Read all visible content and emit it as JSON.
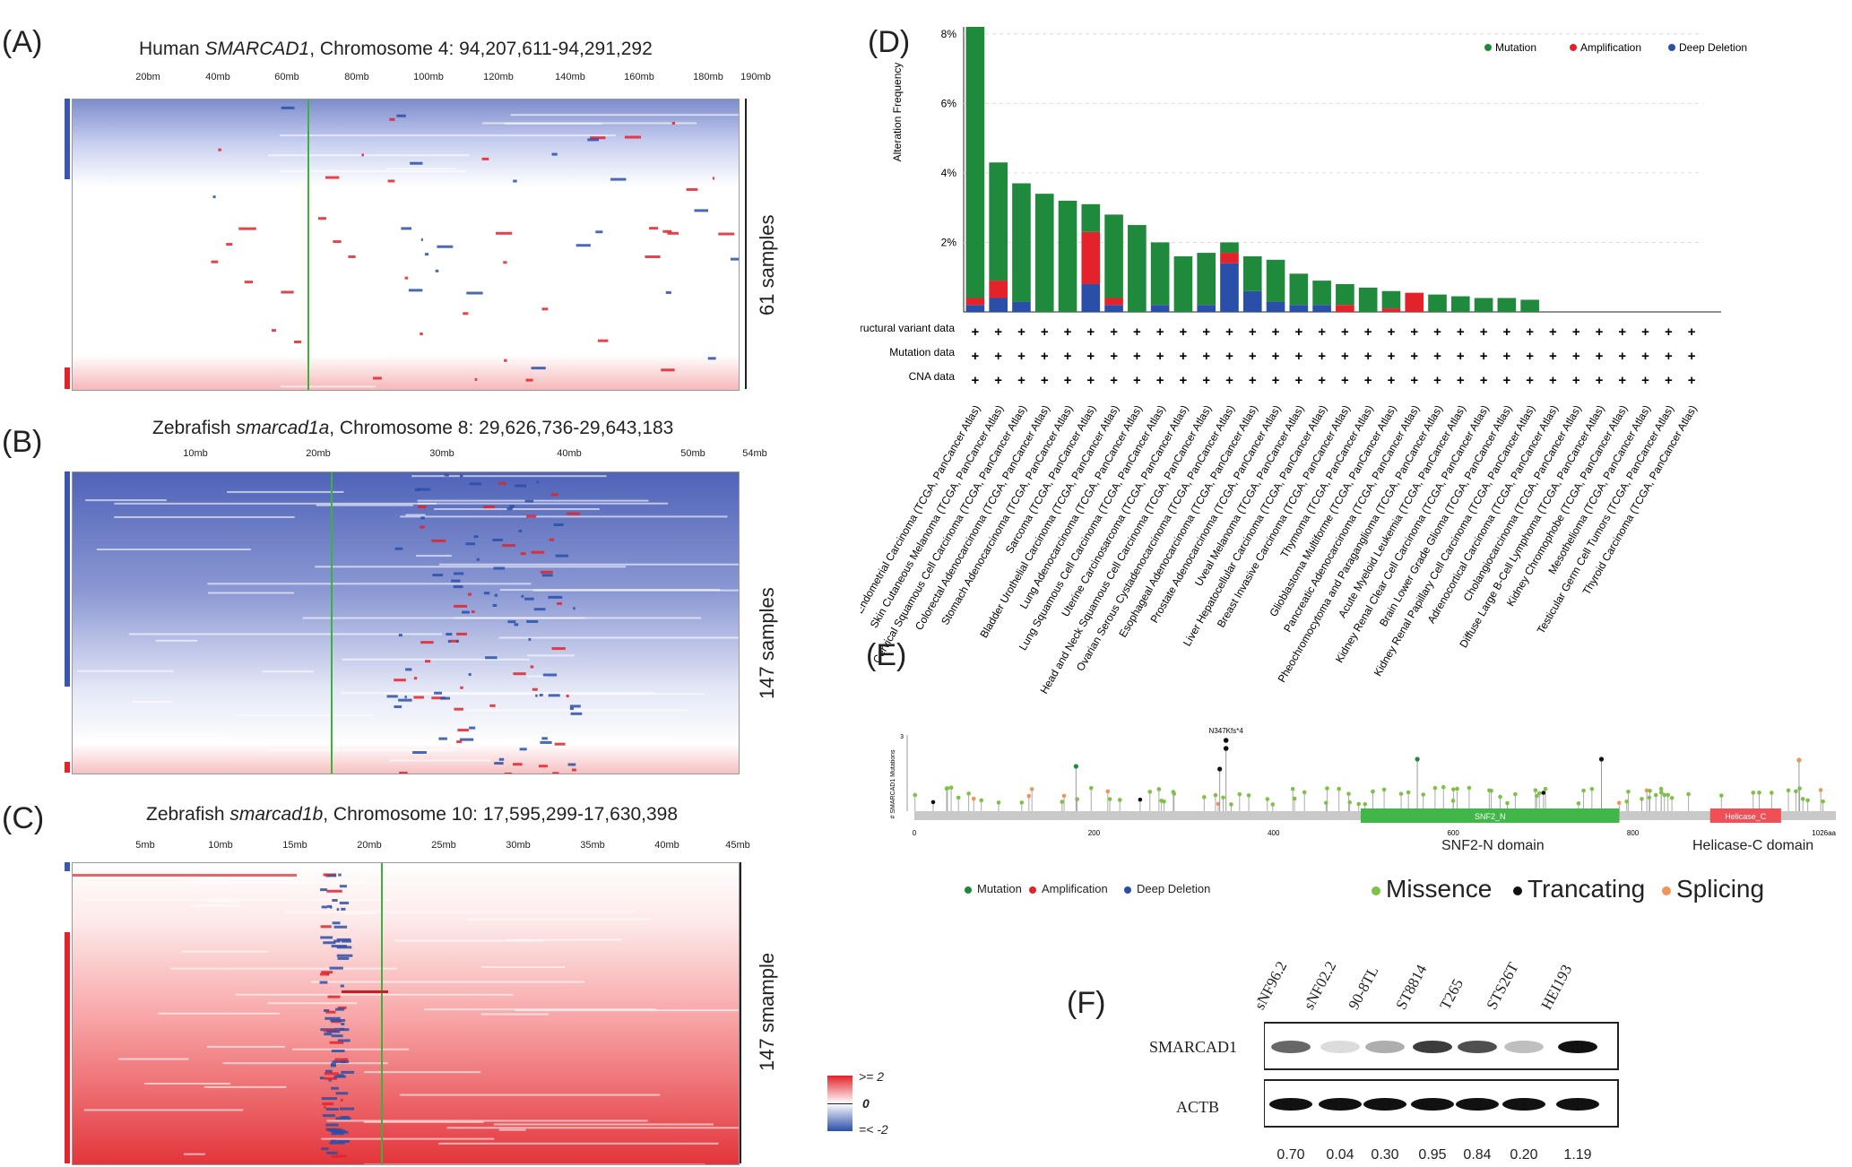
{
  "panels": {
    "A": {
      "label": "(A)",
      "title_pre": "Human ",
      "title_gene": "SMARCAD1",
      "title_post": ", Chromosome 4: 94,207,611-94,291,292",
      "ticks": [
        "20bm",
        "40mb",
        "60mb",
        "80mb",
        "100mb",
        "120mb",
        "140mb",
        "160mb",
        "180mb",
        "190mb"
      ],
      "samples": "61 samples"
    },
    "B": {
      "label": "(B)",
      "title_pre": "Zebrafish ",
      "title_gene": "smarcad1a",
      "title_post": ", Chromosome 8: 29,626,736-29,643,183",
      "ticks": [
        "10mb",
        "20mb",
        "30mb",
        "40mb",
        "50mb",
        "54mb"
      ],
      "samples": "147 samples"
    },
    "C": {
      "label": "(C)",
      "title_pre": "Zebrafish ",
      "title_gene": "smarcad1b",
      "title_post": ", Chromosome 10: 17,595,299-17,630,398",
      "ticks": [
        "5mb",
        "10mb",
        "15mb",
        "20mb",
        "25mb",
        "30mb",
        "35mb",
        "40mb",
        "45mb"
      ],
      "samples": "147 smample"
    },
    "colorscale": {
      "high": ">= 2",
      "mid": "0",
      "low": "=< -2"
    },
    "D": {
      "label": "(D)"
    },
    "E": {
      "label": "(E)",
      "ylabel": "# SMARCAD1 Mutations",
      "ymax": "3",
      "hotspot": "N347Kfs*4",
      "domains": [
        "SNF2_N",
        "Helicase_C"
      ],
      "xticks": [
        "0",
        "200",
        "400",
        "600",
        "800",
        "1026aa"
      ],
      "domain_captions": [
        "SNF2-N domain",
        "Helicase-C domain"
      ],
      "legend_small": [
        "Mutation",
        "Amplification",
        "Deep Deletion"
      ],
      "legend_large": [
        "Missence",
        "Trancating",
        "Splicing"
      ]
    },
    "F": {
      "label": "(F)",
      "cell_lines": [
        "sNF96.2",
        "sNF02.2",
        "90-8TL",
        "ST8814",
        "T265",
        "STS26T",
        "HEI193"
      ],
      "proteins": [
        "SMARCAD1",
        "ACTB"
      ],
      "quant": [
        "0.70",
        "0.04",
        "0.30",
        "0.95",
        "0.84",
        "0.20",
        "1.19"
      ]
    }
  },
  "colors": {
    "mutation": "#1f8a3c",
    "amplification": "#e3222a",
    "deep_deletion": "#2a4fa8",
    "missense": "#7dc242",
    "truncating": "#111111",
    "splicing": "#f0955a",
    "green_line": "#3bb33b"
  },
  "chart_data": {
    "type": "bar",
    "ylabel": "Alteration Frequency",
    "yticks": [
      "2%",
      "4%",
      "6%",
      "8%"
    ],
    "ylim": [
      0,
      8.2
    ],
    "legend": [
      "Mutation",
      "Amplification",
      "Deep Deletion"
    ],
    "rows": [
      "Structural variant data",
      "Mutation data",
      "CNA data"
    ],
    "categories": [
      "Uterine Corpus Endometrial Carcinoma (TCGA, PanCancer Atlas)",
      "Skin Cutaneous Melanoma (TCGA, PanCancer Atlas)",
      "Cervical Squamous Cell Carcinoma (TCGA, PanCancer Atlas)",
      "Colorectal Adenocarcinoma (TCGA, PanCancer Atlas)",
      "Stomach Adenocarcinoma (TCGA, PanCancer Atlas)",
      "Sarcoma (TCGA, PanCancer Atlas)",
      "Bladder Urothelial Carcinoma (TCGA, PanCancer Atlas)",
      "Lung Adenocarcinoma (TCGA, PanCancer Atlas)",
      "Lung Squamous Cell Carcinoma (TCGA, PanCancer Atlas)",
      "Uterine Carcinosarcoma (TCGA, PanCancer Atlas)",
      "Head and Neck Squamous Cell Carcinoma (TCGA, PanCancer Atlas)",
      "Ovarian Serous Cystadenocarcinoma (TCGA, PanCancer Atlas)",
      "Esophageal Adenocarcinoma (TCGA, PanCancer Atlas)",
      "Prostate Adenocarcinoma (TCGA, PanCancer Atlas)",
      "Uveal Melanoma (TCGA, PanCancer Atlas)",
      "Liver Hepatocellular Carcinoma (TCGA, PanCancer Atlas)",
      "Breast Invasive Carcinoma (TCGA, PanCancer Atlas)",
      "Thymoma (TCGA, PanCancer Atlas)",
      "Glioblastoma Multiforme (TCGA, PanCancer Atlas)",
      "Pancreatic Adenocarcinoma (TCGA, PanCancer Atlas)",
      "Pheochromocytoma and Paraganglioma (TCGA, PanCancer Atlas)",
      "Acute Myeloid Leukemia (TCGA, PanCancer Atlas)",
      "Kidney Renal Clear Cell Carcinoma (TCGA, PanCancer Atlas)",
      "Brain Lower Grade Glioma (TCGA, PanCancer Atlas)",
      "Kidney Renal Papillary Cell Carcinoma (TCGA, PanCancer Atlas)",
      "Adrenocortical Carcinoma (TCGA, PanCancer Atlas)",
      "Cholangiocarcinoma (TCGA, PanCancer Atlas)",
      "Diffuse Large B-Cell Lymphoma (TCGA, PanCancer Atlas)",
      "Kidney Chromophobe (TCGA, PanCancer Atlas)",
      "Mesothelioma (TCGA, PanCancer Atlas)",
      "Testicular Germ Cell Tumors (TCGA, PanCancer Atlas)",
      "Thyroid Carcinoma (TCGA, PanCancer Atlas)"
    ],
    "series": [
      {
        "name": "Mutation",
        "values": [
          7.8,
          3.4,
          3.4,
          3.4,
          3.2,
          0.8,
          2.4,
          2.5,
          1.8,
          1.6,
          1.5,
          0.3,
          1.0,
          1.2,
          0.9,
          0.7,
          0.6,
          0.7,
          0.5,
          0,
          0.5,
          0.45,
          0.4,
          0.4,
          0.35,
          0,
          0,
          0,
          0,
          0,
          0,
          0
        ]
      },
      {
        "name": "Amplification",
        "values": [
          0.2,
          0.5,
          0,
          0,
          0,
          1.5,
          0.2,
          0,
          0,
          0,
          0,
          0.3,
          0,
          0,
          0,
          0,
          0.2,
          0,
          0.1,
          0.55,
          0,
          0,
          0,
          0,
          0,
          0,
          0,
          0,
          0,
          0,
          0,
          0
        ]
      },
      {
        "name": "Deep Deletion",
        "values": [
          0.2,
          0.4,
          0.3,
          0,
          0,
          0.8,
          0.2,
          0,
          0.2,
          0,
          0.2,
          1.4,
          0.6,
          0.3,
          0.2,
          0.2,
          0,
          0,
          0,
          0,
          0,
          0,
          0,
          0,
          0,
          0,
          0,
          0,
          0,
          0,
          0,
          0
        ]
      }
    ]
  }
}
